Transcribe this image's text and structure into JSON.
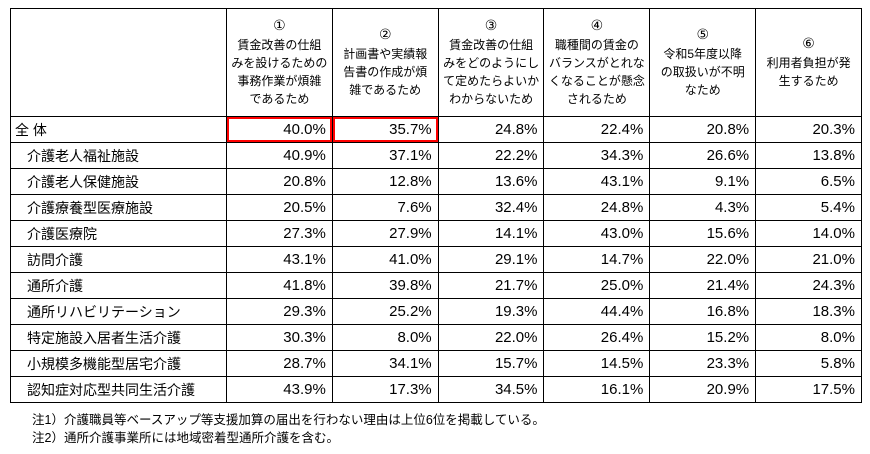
{
  "chart_data": {
    "type": "table",
    "corner_label": "",
    "columns": [
      {
        "num": "①",
        "label": "賃金改善の仕組\nみを設けるための\n事務作業が煩雑\nであるため"
      },
      {
        "num": "②",
        "label": "計画書や実績報\n告書の作成が煩\n雑であるため"
      },
      {
        "num": "③",
        "label": "賃金改善の仕組\nみをどのようにし\nて定めたらよいか\nわからないため"
      },
      {
        "num": "④",
        "label": "職種間の賃金の\nバランスがとれな\nくなることが懸念\nされるため"
      },
      {
        "num": "⑤",
        "label": "令和5年度以降\nの取扱いが不明\nなため"
      },
      {
        "num": "⑥",
        "label": "利用者負担が発\n生するため"
      }
    ],
    "rows": [
      {
        "label": "全 体",
        "total": true,
        "values": [
          "40.0%",
          "35.7%",
          "24.8%",
          "22.4%",
          "20.8%",
          "20.3%"
        ]
      },
      {
        "label": "介護老人福祉施設",
        "total": false,
        "values": [
          "40.9%",
          "37.1%",
          "22.2%",
          "34.3%",
          "26.6%",
          "13.8%"
        ]
      },
      {
        "label": "介護老人保健施設",
        "total": false,
        "values": [
          "20.8%",
          "12.8%",
          "13.6%",
          "43.1%",
          "9.1%",
          "6.5%"
        ]
      },
      {
        "label": "介護療養型医療施設",
        "total": false,
        "values": [
          "20.5%",
          "7.6%",
          "32.4%",
          "24.8%",
          "4.3%",
          "5.4%"
        ]
      },
      {
        "label": "介護医療院",
        "total": false,
        "values": [
          "27.3%",
          "27.9%",
          "14.1%",
          "43.0%",
          "15.6%",
          "14.0%"
        ]
      },
      {
        "label": "訪問介護",
        "total": false,
        "values": [
          "43.1%",
          "41.0%",
          "29.1%",
          "14.7%",
          "22.0%",
          "21.0%"
        ]
      },
      {
        "label": "通所介護",
        "total": false,
        "values": [
          "41.8%",
          "39.8%",
          "21.7%",
          "25.0%",
          "21.4%",
          "24.3%"
        ]
      },
      {
        "label": "通所リハビリテーション",
        "total": false,
        "values": [
          "29.3%",
          "25.2%",
          "19.3%",
          "44.4%",
          "16.8%",
          "18.3%"
        ]
      },
      {
        "label": "特定施設入居者生活介護",
        "total": false,
        "values": [
          "30.3%",
          "8.0%",
          "22.0%",
          "26.4%",
          "15.2%",
          "8.0%"
        ]
      },
      {
        "label": "小規模多機能型居宅介護",
        "total": false,
        "values": [
          "28.7%",
          "34.1%",
          "15.7%",
          "14.5%",
          "23.3%",
          "5.8%"
        ]
      },
      {
        "label": "認知症対応型共同生活介護",
        "total": false,
        "values": [
          "43.9%",
          "17.3%",
          "34.5%",
          "16.1%",
          "20.9%",
          "17.5%"
        ]
      }
    ],
    "highlights": [
      {
        "row": 0,
        "col": 0
      },
      {
        "row": 0,
        "col": 1
      }
    ],
    "highlight_color": "#ff0000"
  },
  "notes": [
    "注1）介護職員等ベースアップ等支援加算の届出を行わない理由は上位6位を掲載している。",
    "注2）通所介護事業所には地域密着型通所介護を含む。"
  ]
}
